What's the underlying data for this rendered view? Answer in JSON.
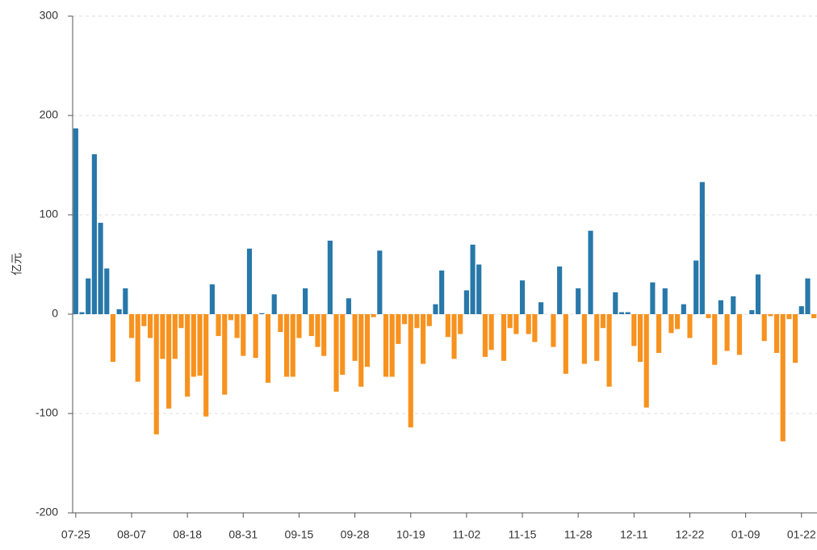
{
  "chart_data": {
    "type": "bar",
    "y_label": "亿元",
    "categories": [
      "07-25",
      null,
      null,
      null,
      null,
      null,
      null,
      null,
      null,
      "08-07",
      null,
      null,
      null,
      null,
      null,
      null,
      null,
      null,
      "08-18",
      null,
      null,
      null,
      null,
      null,
      null,
      null,
      null,
      "08-31",
      null,
      null,
      null,
      null,
      null,
      null,
      null,
      null,
      "09-15",
      null,
      null,
      null,
      null,
      null,
      null,
      null,
      null,
      "09-28",
      null,
      null,
      null,
      null,
      null,
      null,
      null,
      null,
      "10-19",
      null,
      null,
      null,
      null,
      null,
      null,
      null,
      null,
      "11-02",
      null,
      null,
      null,
      null,
      null,
      null,
      null,
      null,
      "11-15",
      null,
      null,
      null,
      null,
      null,
      null,
      null,
      null,
      "11-28",
      null,
      null,
      null,
      null,
      null,
      null,
      null,
      null,
      "12-11",
      null,
      null,
      null,
      null,
      null,
      null,
      null,
      null,
      "12-22",
      null,
      null,
      null,
      null,
      null,
      null,
      null,
      null,
      "01-09",
      null,
      null,
      null,
      null,
      null,
      null,
      null,
      null,
      "01-22",
      null,
      null
    ],
    "values": [
      187,
      2,
      36,
      161,
      92,
      46,
      -48,
      5,
      26,
      -24,
      -68,
      -12,
      -24,
      -121,
      -45,
      -95,
      -45,
      -14,
      -83,
      -63,
      -62,
      -103,
      30,
      -22,
      -81,
      -6,
      -24,
      -42,
      66,
      -44,
      1,
      -69,
      20,
      -18,
      -63,
      -63,
      -24,
      26,
      -22,
      -33,
      -42,
      74,
      -78,
      -61,
      16,
      -47,
      -73,
      -53,
      -3,
      64,
      -63,
      -63,
      -30,
      -10,
      -114,
      -14,
      -50,
      -12,
      10,
      44,
      -23,
      -45,
      -20,
      24,
      70,
      50,
      -43,
      -36,
      0,
      -47,
      -14,
      -20,
      34,
      -20,
      -28,
      12,
      0,
      -33,
      48,
      -60,
      0,
      26,
      -50,
      84,
      -47,
      -14,
      -73,
      22,
      2,
      2,
      -32,
      -48,
      -94,
      32,
      -39,
      26,
      -19,
      -15,
      10,
      -24,
      54,
      133,
      -4,
      -51,
      14,
      -37,
      18,
      -41,
      0,
      4,
      40,
      -27,
      -2,
      -39,
      -128,
      -5,
      -49,
      8,
      36,
      -4
    ],
    "positive_color": "#2878a9",
    "negative_color": "#f7921e",
    "ylim": [
      -200,
      300
    ],
    "yticks": [
      -200,
      -100,
      0,
      100,
      200,
      300
    ],
    "grid": true
  }
}
